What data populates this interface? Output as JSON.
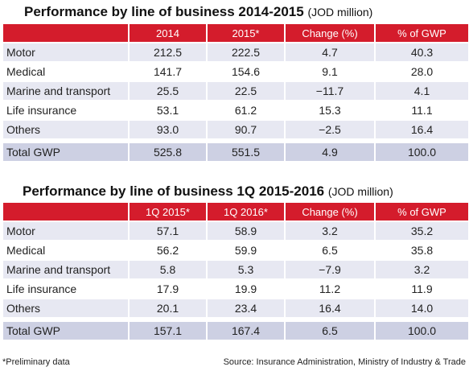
{
  "table1": {
    "title": "Performance by line of business 2014-2015",
    "unit": "(JOD million)",
    "headers": [
      "",
      "2014",
      "2015*",
      "Change (%)",
      "% of GWP"
    ],
    "rows": [
      [
        "Motor",
        "212.5",
        "222.5",
        "4.7",
        "40.3"
      ],
      [
        "Medical",
        "141.7",
        "154.6",
        "9.1",
        "28.0"
      ],
      [
        "Marine and transport",
        "25.5",
        "22.5",
        "−11.7",
        "4.1"
      ],
      [
        "Life insurance",
        "53.1",
        "61.2",
        "15.3",
        "11.1"
      ],
      [
        "Others",
        "93.0",
        "90.7",
        "−2.5",
        "16.4"
      ]
    ],
    "total": [
      "Total GWP",
      "525.8",
      "551.5",
      "4.9",
      "100.0"
    ]
  },
  "table2": {
    "title": "Performance by line of business 1Q 2015-2016",
    "unit": "(JOD million)",
    "headers": [
      "",
      "1Q 2015*",
      "1Q 2016*",
      "Change (%)",
      "% of GWP"
    ],
    "rows": [
      [
        "Motor",
        "57.1",
        "58.9",
        "3.2",
        "35.2"
      ],
      [
        "Medical",
        "56.2",
        "59.9",
        "6.5",
        "35.8"
      ],
      [
        "Marine and transport",
        "5.8",
        "5.3",
        "−7.9",
        "3.2"
      ],
      [
        "Life insurance",
        "17.9",
        "19.9",
        "11.2",
        "11.9"
      ],
      [
        "Others",
        "20.1",
        "23.4",
        "16.4",
        "14.0"
      ]
    ],
    "total": [
      "Total GWP",
      "157.1",
      "167.4",
      "6.5",
      "100.0"
    ]
  },
  "footer": {
    "note": "*Preliminary data",
    "source": "Source: Insurance Administration, Ministry of Industry & Trade"
  },
  "colors": {
    "header_red": "#d41c2c",
    "row_band": "#e7e8f2",
    "total_row": "#cdd0e3"
  }
}
